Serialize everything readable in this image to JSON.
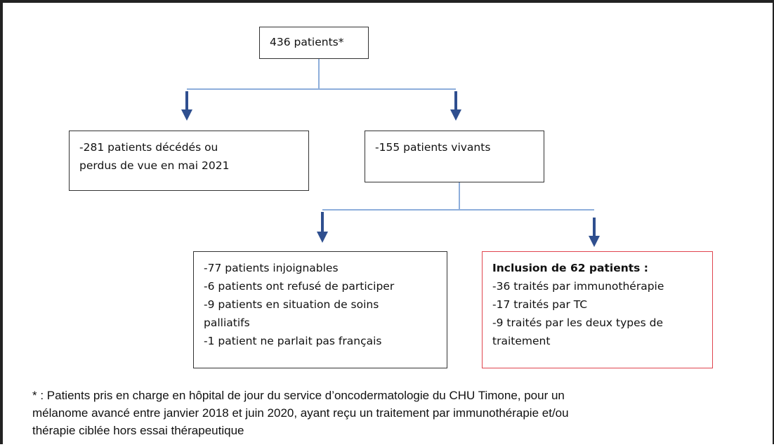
{
  "nodes": [
    {
      "lines": [
        "436 patients*"
      ]
    },
    {
      "lines": [
        "-281 patients décédés ou",
        "perdus de vue en mai 2021"
      ]
    },
    {
      "lines": [
        "-155 patients vivants"
      ]
    },
    {
      "lines": [
        "-77 patients injoignables",
        "-6 patients ont refusé de participer",
        "-9 patients en situation de soins",
        "palliatifs",
        "-1 patient ne parlait pas français"
      ]
    },
    {
      "lines": [
        "Inclusion de 62 patients :",
        "-36 traités par immunothérapie",
        "-17 traités par TC",
        "-9 traités par les deux types de",
        "traitement"
      ]
    }
  ],
  "footnote": [
    "* : Patients pris en charge en hôpital de jour du service d’oncodermatologie du CHU Timone, pour un",
    "mélanome avancé entre janvier 2018 et juin 2020, ayant reçu un traitement par immunothérapie et/ou",
    "thérapie ciblée hors essai thérapeutique"
  ]
}
